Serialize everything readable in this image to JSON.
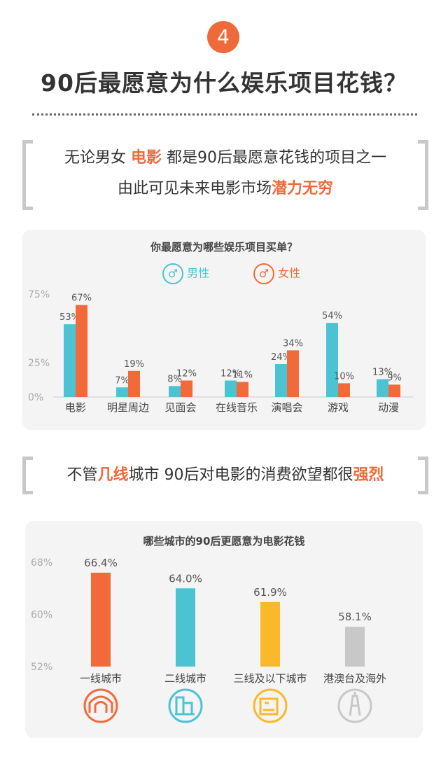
{
  "section_number": "4",
  "title": "90后最愿意为什么娱乐项目花钱？",
  "quote1": {
    "line1_a": "无论男女 ",
    "line1_hl": "电影",
    "line1_b": " 都是90后最愿意花钱的项目之一",
    "line2_a": "由此可见未来电影市场",
    "line2_hl": "潜力无穷"
  },
  "quote2": {
    "a": "不管",
    "hl1": "几线",
    "b": "城市 90后对电影的消费欲望都很",
    "hl2": "强烈"
  },
  "legend": {
    "male": "男性",
    "female": "女性",
    "male_icon": "male-symbol-icon",
    "female_icon": "female-symbol-icon"
  },
  "colors": {
    "male": "#4cc3d3",
    "female": "#f26a3a",
    "accent": "#ef6a3a"
  },
  "chart_data": [
    {
      "type": "bar",
      "title": "你最愿意为哪些娱乐项目买单？",
      "categories": [
        "电影",
        "明星周边",
        "见面会",
        "在线音乐",
        "演唱会",
        "游戏",
        "动漫"
      ],
      "yticks": [
        "75%",
        "25%",
        "0%"
      ],
      "ylim": [
        0,
        75
      ],
      "series": [
        {
          "name": "男性",
          "values": [
            53,
            7,
            8,
            12,
            24,
            54,
            13
          ],
          "labels": [
            "53%",
            "7%",
            "8%",
            "12%",
            "24%",
            "54%",
            "13%"
          ]
        },
        {
          "name": "女性",
          "values": [
            67,
            19,
            12,
            11,
            34,
            10,
            9
          ],
          "labels": [
            "67%",
            "19%",
            "12%",
            "11%",
            "34%",
            "10%",
            "9%"
          ]
        }
      ]
    },
    {
      "type": "bar",
      "title": "哪些城市的90后更愿意为电影花钱",
      "categories": [
        "一线城市",
        "二线城市",
        "三线及以下城市",
        "港澳台及海外"
      ],
      "values": [
        66.4,
        64.0,
        61.9,
        58.1
      ],
      "labels": [
        "66.4%",
        "64.0%",
        "61.9%",
        "58.1%"
      ],
      "colors": [
        "#f26a3a",
        "#4cc3d3",
        "#fbb829",
        "#c8c8c8"
      ],
      "icons": [
        "tunnel-icon",
        "city-buildings-icon",
        "house-icon",
        "tower-icon"
      ],
      "yticks": [
        "68%",
        "60%",
        "52%"
      ],
      "ylim": [
        52,
        68
      ]
    }
  ]
}
